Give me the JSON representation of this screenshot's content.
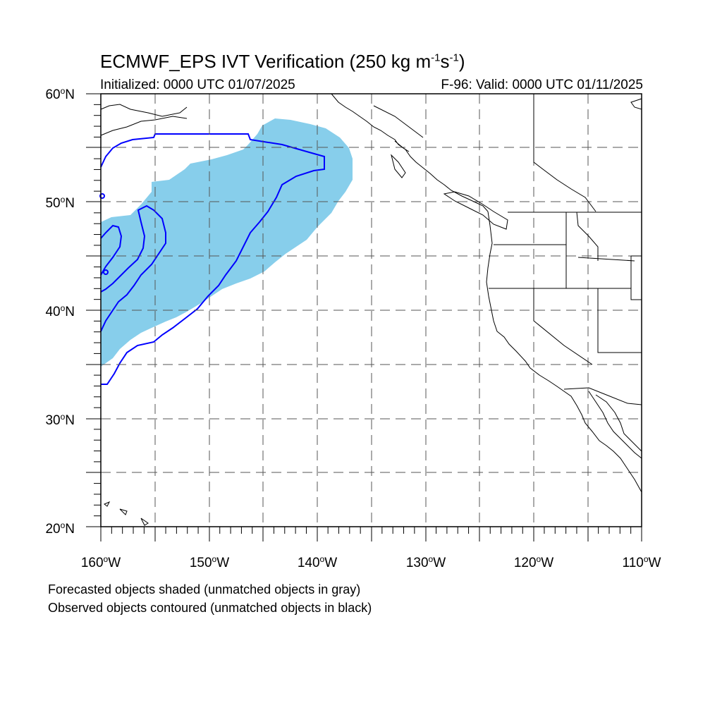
{
  "title": {
    "prefix": "ECMWF_EPS IVT Verification (250 kg m",
    "exp1": "-1",
    "mid": "s",
    "exp2": "-1",
    "suffix": ")"
  },
  "initialized": "Initialized: 0000 UTC 01/07/2025",
  "valid": "F-96: Valid: 0000 UTC 01/11/2025",
  "lat_labels": [
    {
      "num": "60",
      "suffix": "N"
    },
    {
      "num": "50",
      "suffix": "N"
    },
    {
      "num": "40",
      "suffix": "N"
    },
    {
      "num": "30",
      "suffix": "N"
    },
    {
      "num": "20",
      "suffix": "N"
    }
  ],
  "lon_labels": [
    {
      "num": "160",
      "suffix": "W"
    },
    {
      "num": "150",
      "suffix": "W"
    },
    {
      "num": "140",
      "suffix": "W"
    },
    {
      "num": "130",
      "suffix": "W"
    },
    {
      "num": "120",
      "suffix": "W"
    },
    {
      "num": "110",
      "suffix": "W"
    }
  ],
  "legend_note_forecast": "Forecasted objects shaded (unmatched objects in gray)",
  "legend_note_observed": "Observed objects contoured (unmatched objects in black)",
  "map": {
    "lon_range": [
      -160,
      -110
    ],
    "lat_range": [
      20,
      60
    ],
    "projection": "cylindrical equidistant",
    "grid_spacing_deg": 5,
    "forecast_fill_color": "#87ceeb",
    "observed_contour_color": "#0000ff",
    "coastline_color": "#000000"
  }
}
